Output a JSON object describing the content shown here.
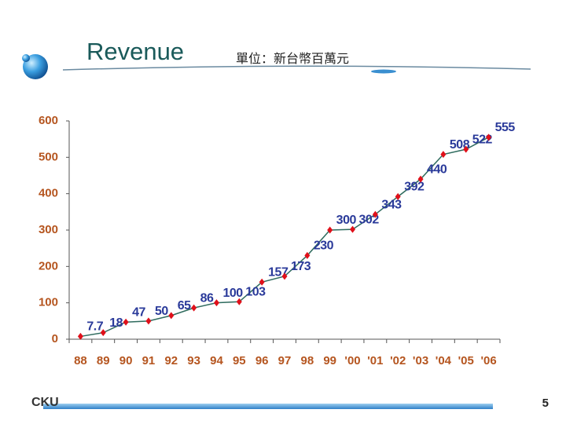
{
  "chart_data": {
    "type": "line",
    "title": "Revenue",
    "subtitle": "單位：新台幣百萬元",
    "categories": [
      "88",
      "89",
      "90",
      "91",
      "92",
      "93",
      "94",
      "95",
      "96",
      "97",
      "98",
      "99",
      "'00",
      "'01",
      "'02",
      "'03",
      "'04",
      "'05",
      "'06"
    ],
    "series": [
      {
        "name": "Revenue",
        "color": "#2f6b5e",
        "marker_color": "#e0101a",
        "values": [
          7.7,
          18,
          47,
          50,
          65,
          86,
          100,
          103,
          157,
          173,
          230,
          300,
          302,
          343,
          392,
          440,
          508,
          522,
          555
        ]
      }
    ],
    "ylim": [
      0,
      600
    ],
    "yticks": [
      0,
      100,
      200,
      300,
      400,
      500,
      600
    ],
    "grid": false
  },
  "footer": "CKU",
  "page_number": "5"
}
